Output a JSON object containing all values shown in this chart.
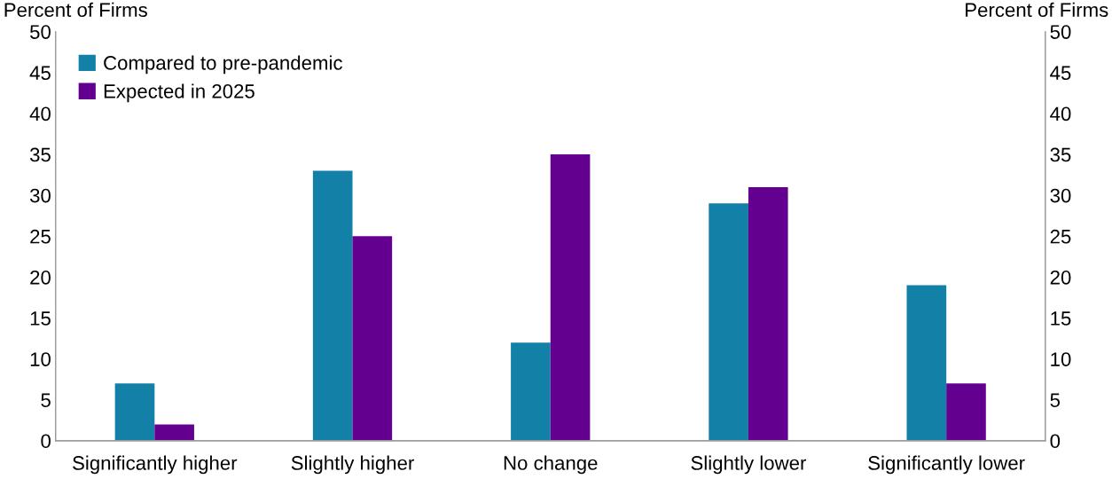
{
  "chart_data": {
    "type": "bar",
    "categories": [
      "Significantly higher",
      "Slightly higher",
      "No change",
      "Slightly lower",
      "Significantly lower"
    ],
    "series": [
      {
        "name": "Compared to pre-pandemic",
        "color": "#1380a8",
        "values": [
          7,
          33,
          12,
          29,
          19
        ]
      },
      {
        "name": "Expected in 2025",
        "color": "#640090",
        "values": [
          2,
          25,
          35,
          31,
          7
        ]
      }
    ],
    "ylabel": "Percent of Firms",
    "y2label": "Percent of Firms",
    "ylim": [
      0,
      50
    ],
    "yticks": [
      0,
      5,
      10,
      15,
      20,
      25,
      30,
      35,
      40,
      45,
      50
    ],
    "y2lim": [
      0,
      50
    ],
    "y2ticks": [
      0,
      5,
      10,
      15,
      20,
      25,
      30,
      35,
      40,
      45,
      50
    ],
    "grid": false,
    "legend": "top left"
  }
}
